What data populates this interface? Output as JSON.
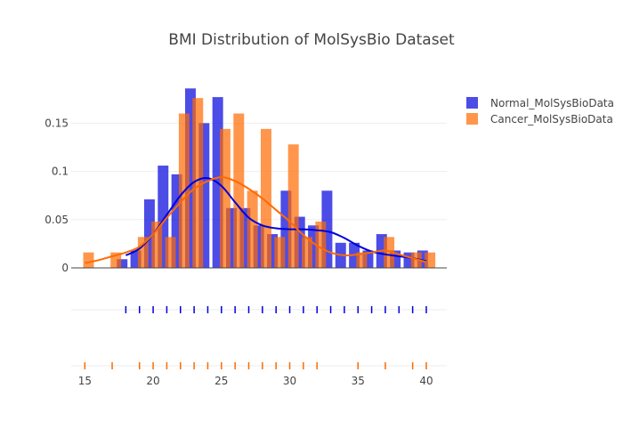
{
  "chart_data": {
    "type": "histogram",
    "title": "BMI Distribution of MolSysBio Dataset",
    "xlabel": "",
    "ylabel": "",
    "xlim": [
      14,
      41.5
    ],
    "ylim": [
      0,
      0.19
    ],
    "x_ticks": [
      15,
      20,
      25,
      30,
      35,
      40
    ],
    "y_ticks": [
      0,
      0.05,
      0.1,
      0.15
    ],
    "y_tick_labels": [
      "0",
      "0.05",
      "0.1",
      "0.15"
    ],
    "grid": true,
    "legend_position": "top-right",
    "bin_width": 1,
    "series": [
      {
        "name": "Normal_MolSysBioData",
        "color": "#0000dd",
        "opacity": 0.7,
        "bins": [
          {
            "x": 18,
            "y": 0.009
          },
          {
            "x": 19,
            "y": 0.018
          },
          {
            "x": 20,
            "y": 0.071
          },
          {
            "x": 21,
            "y": 0.106
          },
          {
            "x": 22,
            "y": 0.097
          },
          {
            "x": 23,
            "y": 0.186
          },
          {
            "x": 24,
            "y": 0.15
          },
          {
            "x": 25,
            "y": 0.177
          },
          {
            "x": 26,
            "y": 0.062
          },
          {
            "x": 27,
            "y": 0.062
          },
          {
            "x": 28,
            "y": 0.044
          },
          {
            "x": 29,
            "y": 0.035
          },
          {
            "x": 30,
            "y": 0.08
          },
          {
            "x": 31,
            "y": 0.053
          },
          {
            "x": 32,
            "y": 0.044
          },
          {
            "x": 33,
            "y": 0.08
          },
          {
            "x": 34,
            "y": 0.026
          },
          {
            "x": 35,
            "y": 0.026
          },
          {
            "x": 36,
            "y": 0.018
          },
          {
            "x": 37,
            "y": 0.035
          },
          {
            "x": 38,
            "y": 0.018
          },
          {
            "x": 39,
            "y": 0.016
          },
          {
            "x": 40,
            "y": 0.018
          }
        ],
        "kde": [
          [
            18,
            0.013
          ],
          [
            19,
            0.02
          ],
          [
            20,
            0.035
          ],
          [
            21,
            0.055
          ],
          [
            22,
            0.075
          ],
          [
            23,
            0.089
          ],
          [
            24,
            0.093
          ],
          [
            25,
            0.085
          ],
          [
            26,
            0.068
          ],
          [
            27,
            0.052
          ],
          [
            28,
            0.044
          ],
          [
            29,
            0.041
          ],
          [
            30,
            0.04
          ],
          [
            31,
            0.04
          ],
          [
            32,
            0.039
          ],
          [
            33,
            0.037
          ],
          [
            34,
            0.031
          ],
          [
            35,
            0.023
          ],
          [
            36,
            0.017
          ],
          [
            37,
            0.014
          ],
          [
            38,
            0.012
          ],
          [
            39,
            0.01
          ],
          [
            40,
            0.007
          ]
        ],
        "rug": [
          18,
          19,
          20,
          21,
          22,
          23,
          24,
          25,
          26,
          27,
          28,
          29,
          30,
          31,
          32,
          33,
          34,
          35,
          36,
          37,
          38,
          39,
          40
        ]
      },
      {
        "name": "Cancer_MolSysBioData",
        "color": "#ff6a00",
        "opacity": 0.7,
        "bins": [
          {
            "x": 15,
            "y": 0.016
          },
          {
            "x": 17,
            "y": 0.016
          },
          {
            "x": 19,
            "y": 0.032
          },
          {
            "x": 20,
            "y": 0.048
          },
          {
            "x": 21,
            "y": 0.032
          },
          {
            "x": 22,
            "y": 0.16
          },
          {
            "x": 23,
            "y": 0.176
          },
          {
            "x": 25,
            "y": 0.144
          },
          {
            "x": 26,
            "y": 0.16
          },
          {
            "x": 27,
            "y": 0.08
          },
          {
            "x": 28,
            "y": 0.144
          },
          {
            "x": 29,
            "y": 0.032
          },
          {
            "x": 30,
            "y": 0.128
          },
          {
            "x": 31,
            "y": 0.032
          },
          {
            "x": 32,
            "y": 0.048
          },
          {
            "x": 35,
            "y": 0.016
          },
          {
            "x": 37,
            "y": 0.032
          },
          {
            "x": 39,
            "y": 0.016
          },
          {
            "x": 40,
            "y": 0.016
          }
        ],
        "kde": [
          [
            15,
            0.005
          ],
          [
            16,
            0.008
          ],
          [
            17,
            0.012
          ],
          [
            18,
            0.016
          ],
          [
            19,
            0.022
          ],
          [
            20,
            0.035
          ],
          [
            21,
            0.052
          ],
          [
            22,
            0.068
          ],
          [
            23,
            0.082
          ],
          [
            24,
            0.09
          ],
          [
            25,
            0.094
          ],
          [
            26,
            0.09
          ],
          [
            27,
            0.082
          ],
          [
            28,
            0.072
          ],
          [
            29,
            0.06
          ],
          [
            30,
            0.048
          ],
          [
            31,
            0.034
          ],
          [
            32,
            0.023
          ],
          [
            33,
            0.016
          ],
          [
            34,
            0.013
          ],
          [
            35,
            0.014
          ],
          [
            36,
            0.016
          ],
          [
            37,
            0.018
          ],
          [
            38,
            0.014
          ],
          [
            39,
            0.01
          ],
          [
            40,
            0.006
          ]
        ],
        "rug": [
          15,
          17,
          19,
          20,
          21,
          22,
          23,
          24,
          25,
          26,
          27,
          28,
          29,
          30,
          31,
          32,
          35,
          37,
          39,
          40
        ]
      }
    ]
  }
}
